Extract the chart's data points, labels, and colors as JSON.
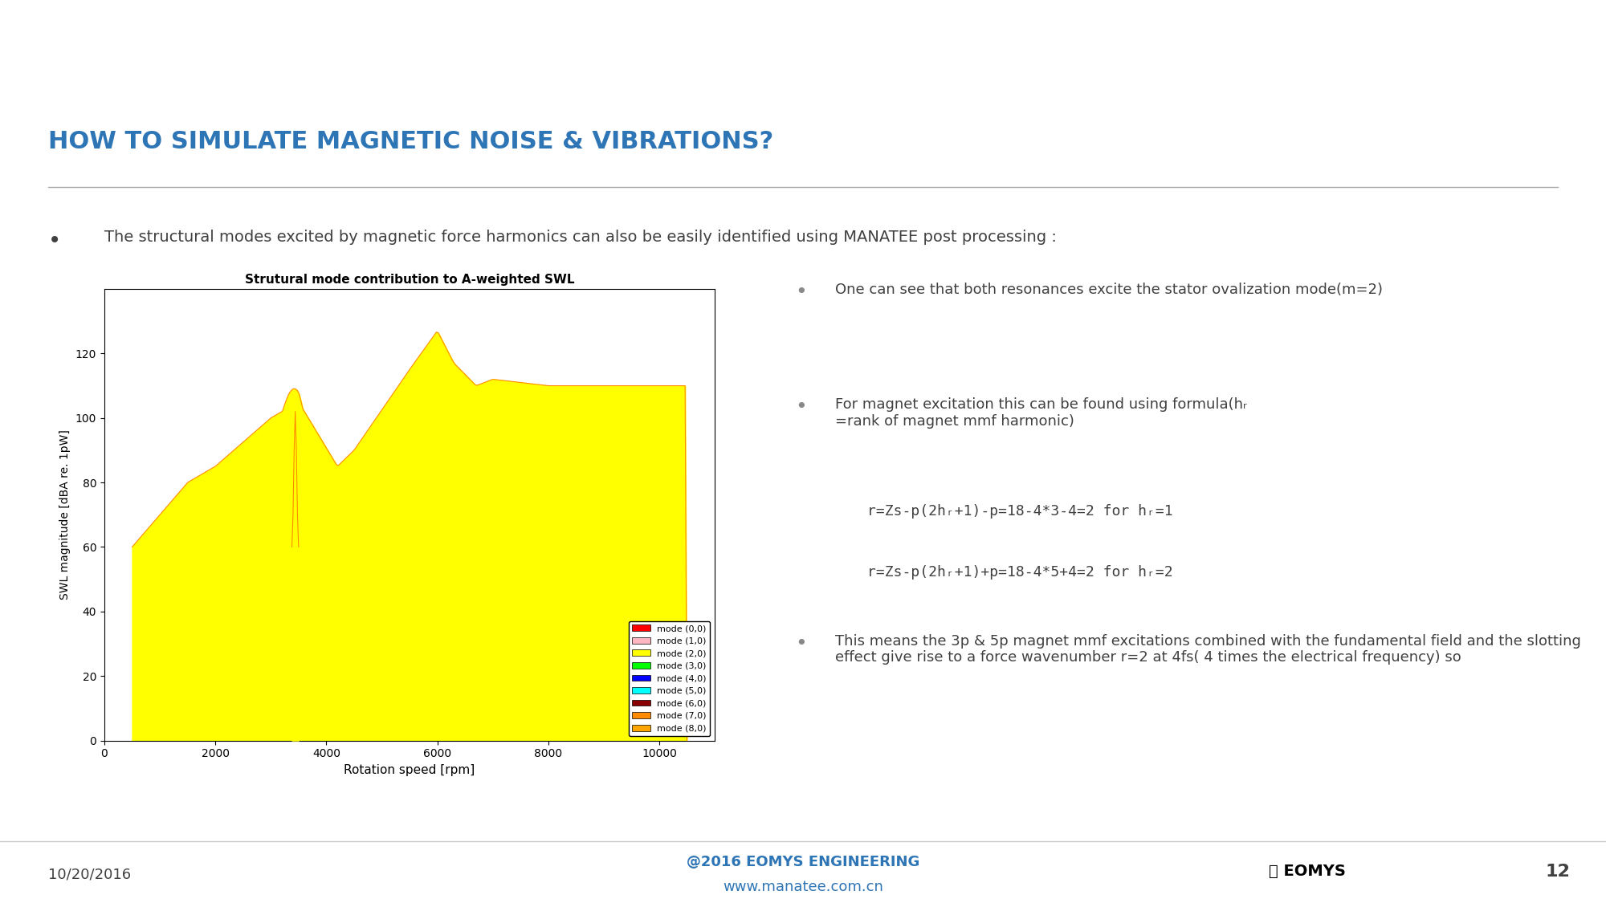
{
  "title": "HOW TO SIMULATE MAGNETIC NOISE & VIBRATIONS?",
  "title_color": "#2E75B6",
  "header_bar_color": "#3A7BBF",
  "header_bar_height": 0.085,
  "footer_bar_color": "#3A7BBF",
  "bg_color": "#FFFFFF",
  "slide_number": "12",
  "bullet1": "The structural modes excited by magnetic force harmonics can also be easily identified using MANATEE post processing :",
  "chart_title": "Strutural mode contribution to A-weighted SWL",
  "ylabel": "SWL magnitude [dBA re. 1pW]",
  "xlabel": "Rotation speed [rpm]",
  "ylim": [
    0,
    140
  ],
  "xlim": [
    0,
    11000
  ],
  "xticks": [
    0,
    2000,
    4000,
    6000,
    8000,
    10000
  ],
  "yticks": [
    0,
    20,
    40,
    60,
    80,
    100,
    120
  ],
  "legend_labels": [
    "mode (0,0)",
    "mode (1,0)",
    "mode (2,0)",
    "mode (3,0)",
    "mode (4,0)",
    "mode (5,0)",
    "mode (6,0)",
    "mode (7,0)",
    "mode (8,0)"
  ],
  "legend_colors": [
    "#FF0000",
    "#FFB6C1",
    "#FFFF00",
    "#00FF00",
    "#0000FF",
    "#00FFFF",
    "#8B0000",
    "#FF8C00",
    "#FFA500"
  ],
  "bullet2": "One can see that both resonances excite the stator ovalization mode(m=2)",
  "bullet3": "For magnet excitation this can be found using formula(hᵣ =rank of magnet mmf harmonic)",
  "formula1": "r=Zs-p(2hᵣ+1)-p=18-4*3-4=2 for hᵣ=1",
  "formula2": "r=Zs-p(2hᵣ+1)+p=18-4*5+4=2 for hᵣ=2",
  "bullet4": "This means the 3p & 5p magnet mmf excitations combined with the fundamental field and the slotting effect give rise to a force wavenumber r=2 at 4fs( 4 times the electrical frequency) so",
  "footer_text_left": "10/20/2016",
  "footer_text_center1": "@2016 EOMYS ENGINEERING",
  "footer_text_center2": "www.manatee.com.cn",
  "footer_color_center": "#2E75B6",
  "text_color": "#404040"
}
